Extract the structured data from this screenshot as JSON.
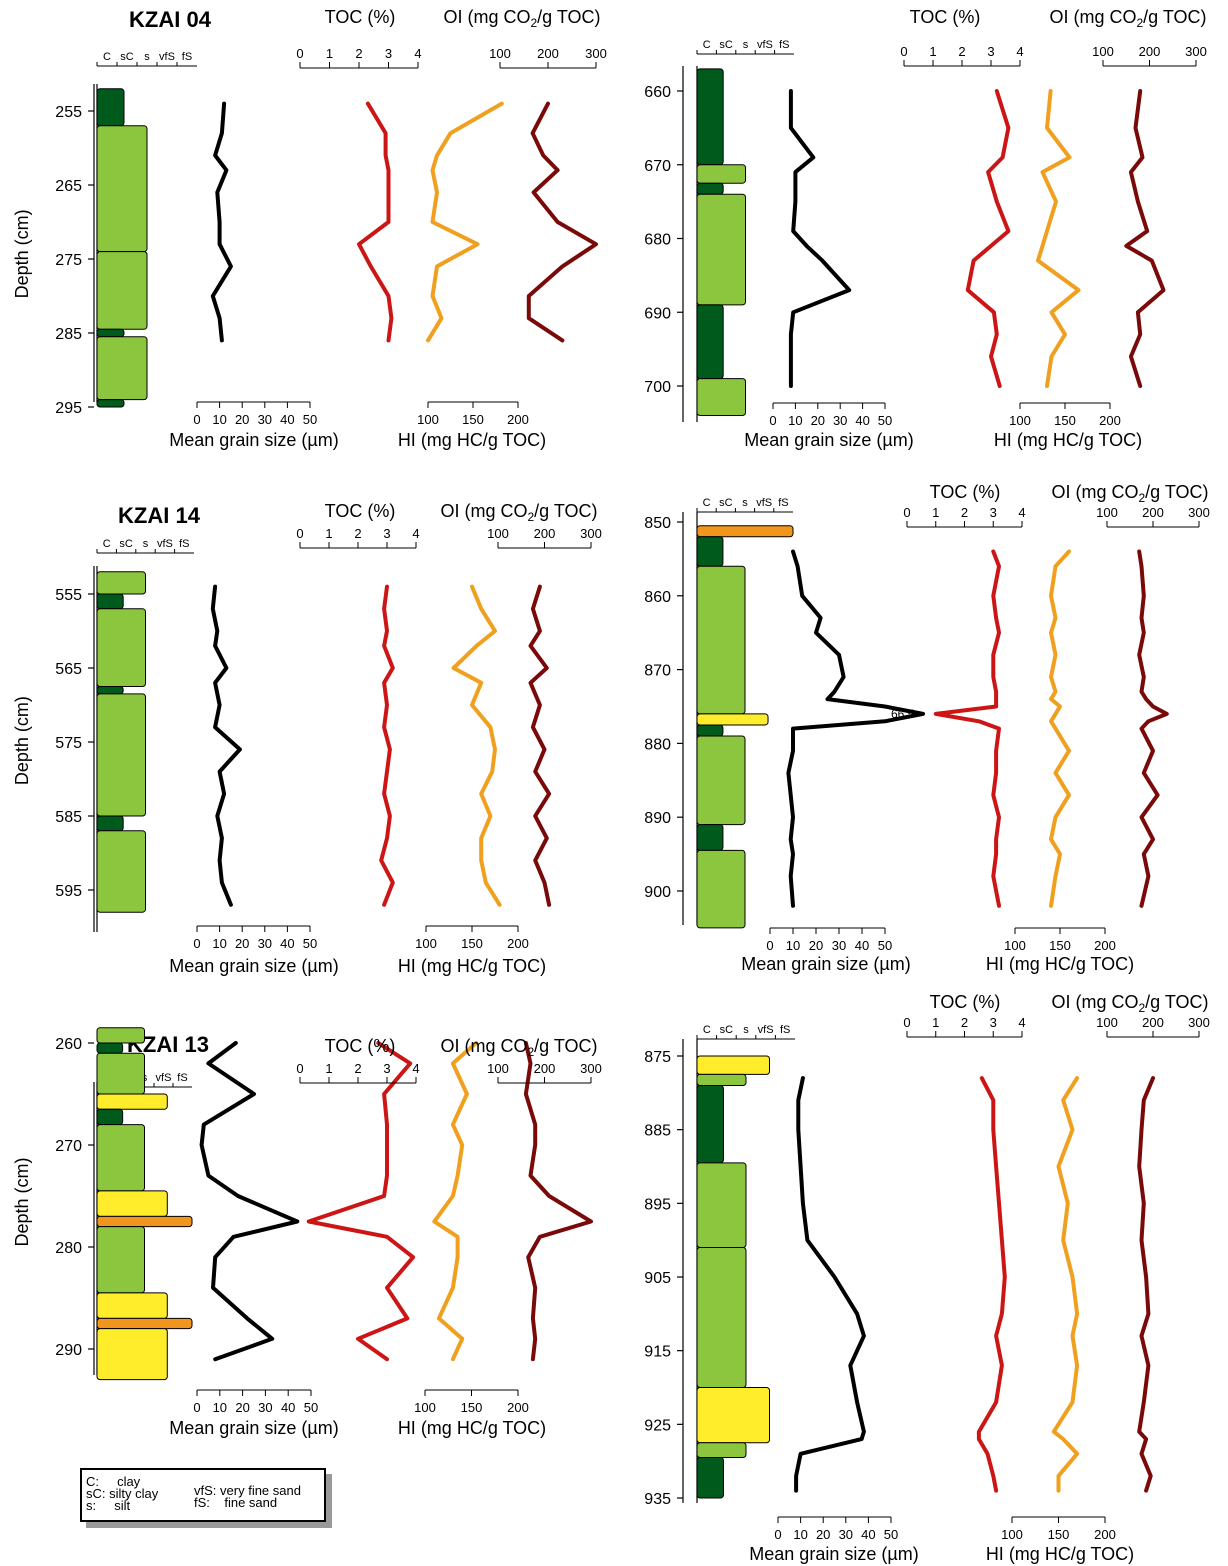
{
  "colors": {
    "clay": "#005a1c",
    "silty_clay": "#8cc63f",
    "silt": "#ffec2a",
    "very_fine_sand": "#f0961e",
    "grain": "#000000",
    "toc": "#cc1616",
    "hi": "#f0a01e",
    "oi": "#7a0a0a"
  },
  "labels": {
    "toc": "TOC (%)",
    "oi_prefix": "OI (mg CO",
    "oi_suffix": "/g TOC)",
    "oi_sub": "2",
    "mgs": "Mean grain size (µm)",
    "hi": "HI (mg HC/g TOC)",
    "depth": "Depth (cm)"
  },
  "lith_ticks": [
    "C",
    "sC",
    "s",
    "vfS",
    "fS"
  ],
  "scales": {
    "toc": [
      "0",
      "1",
      "2",
      "3",
      "4"
    ],
    "oi": [
      "100",
      "200",
      "300"
    ],
    "mgs": [
      "0",
      "10",
      "20",
      "30",
      "40",
      "50"
    ],
    "hi": [
      "100",
      "150",
      "200"
    ]
  },
  "legend": [
    {
      "abbr": "C:",
      "text": "clay"
    },
    {
      "abbr": "sC:",
      "text": "silty clay"
    },
    {
      "abbr": "s:",
      "text": "silt"
    },
    {
      "abbr": "vfS:",
      "text": "very fine sand"
    },
    {
      "abbr": "fS:",
      "text": "fine sand"
    }
  ],
  "chart_data": [
    {
      "type": "line",
      "core": "KZAI 04",
      "depth_ticks": [
        255,
        265,
        275,
        285,
        295
      ],
      "depth_range": [
        251,
        296
      ],
      "lithology": [
        {
          "top": 252,
          "bottom": 257,
          "class": "clay"
        },
        {
          "top": 257,
          "bottom": 274,
          "class": "silty_clay"
        },
        {
          "top": 274,
          "bottom": 284.5,
          "class": "silty_clay"
        },
        {
          "top": 284.5,
          "bottom": 285.5,
          "class": "clay"
        },
        {
          "top": 285.5,
          "bottom": 294,
          "class": "silty_clay"
        },
        {
          "top": 294,
          "bottom": 295,
          "class": "clay"
        }
      ],
      "depths": [
        254,
        258,
        261,
        263,
        266,
        270,
        273,
        276,
        280,
        283,
        286
      ],
      "mean_grain_size": [
        12,
        11,
        8,
        13,
        9,
        10,
        10,
        15,
        7,
        10,
        11
      ],
      "toc": [
        2.3,
        2.9,
        2.9,
        3.0,
        3.0,
        3.0,
        2.0,
        2.4,
        3.0,
        3.1,
        3.0
      ],
      "hi": [
        182,
        125,
        110,
        105,
        110,
        105,
        155,
        110,
        105,
        115,
        100
      ],
      "oi": [
        200,
        168,
        190,
        220,
        170,
        220,
        300,
        230,
        160,
        160,
        230
      ]
    },
    {
      "type": "line",
      "core": "",
      "depth_ticks": [
        660,
        670,
        680,
        690,
        700
      ],
      "depth_range": [
        656,
        705
      ],
      "lithology": [
        {
          "top": 657,
          "bottom": 670,
          "class": "clay"
        },
        {
          "top": 670,
          "bottom": 672.5,
          "class": "silty_clay"
        },
        {
          "top": 672.5,
          "bottom": 674,
          "class": "clay"
        },
        {
          "top": 674,
          "bottom": 689,
          "class": "silty_clay"
        },
        {
          "top": 689,
          "bottom": 699,
          "class": "clay"
        },
        {
          "top": 699,
          "bottom": 704,
          "class": "silty_clay"
        }
      ],
      "depths": [
        660,
        665,
        669,
        671,
        675,
        679,
        681,
        683,
        687,
        690,
        693,
        696,
        700
      ],
      "mean_grain_size": [
        8,
        8,
        18,
        10,
        10,
        9,
        15,
        22,
        34,
        9,
        8,
        8,
        8
      ],
      "toc": [
        3.2,
        3.6,
        3.4,
        2.9,
        3.2,
        3.6,
        3.0,
        2.4,
        2.2,
        3.1,
        3.2,
        3.0,
        3.3
      ],
      "hi": [
        134,
        130,
        155,
        125,
        140,
        130,
        125,
        120,
        165,
        135,
        150,
        135,
        130
      ],
      "oi": [
        180,
        170,
        185,
        160,
        175,
        195,
        150,
        205,
        230,
        175,
        180,
        160,
        180
      ]
    },
    {
      "type": "line",
      "core": "KZAI 14",
      "depth_ticks": [
        555,
        565,
        575,
        585,
        595
      ],
      "depth_range": [
        551,
        597
      ],
      "lithology": [
        {
          "top": 552,
          "bottom": 555,
          "class": "silty_clay"
        },
        {
          "top": 555,
          "bottom": 557,
          "class": "clay"
        },
        {
          "top": 557,
          "bottom": 567.5,
          "class": "silty_clay"
        },
        {
          "top": 567.5,
          "bottom": 568.5,
          "class": "clay"
        },
        {
          "top": 568.5,
          "bottom": 585,
          "class": "silty_clay"
        },
        {
          "top": 585,
          "bottom": 587,
          "class": "clay"
        },
        {
          "top": 587,
          "bottom": 598,
          "class": "silty_clay"
        }
      ],
      "depths": [
        554,
        557,
        560,
        562,
        565,
        567,
        570,
        573,
        576,
        579,
        582,
        585,
        588,
        591,
        594,
        597
      ],
      "mean_grain_size": [
        8,
        7,
        9,
        8,
        13,
        8,
        10,
        8,
        19,
        10,
        12,
        9,
        11,
        10,
        11,
        15
      ],
      "toc": [
        3.0,
        2.9,
        3.0,
        2.9,
        3.2,
        2.9,
        3.0,
        2.9,
        3.1,
        3.0,
        2.9,
        3.1,
        3.0,
        2.8,
        3.2,
        2.9
      ],
      "hi": [
        150,
        160,
        175,
        155,
        130,
        160,
        150,
        170,
        175,
        172,
        160,
        170,
        160,
        160,
        165,
        180
      ],
      "oi": [
        190,
        175,
        190,
        170,
        205,
        170,
        190,
        175,
        200,
        180,
        210,
        180,
        205,
        180,
        200,
        210
      ]
    },
    {
      "type": "line",
      "core": "",
      "depth_ticks": [
        850,
        860,
        870,
        880,
        890,
        900
      ],
      "depth_range": [
        849,
        905
      ],
      "lithology": [
        {
          "top": 850.5,
          "bottom": 852,
          "class": "very_fine_sand"
        },
        {
          "top": 852,
          "bottom": 856,
          "class": "clay"
        },
        {
          "top": 856,
          "bottom": 876,
          "class": "silty_clay"
        },
        {
          "top": 876,
          "bottom": 877.5,
          "class": "silt"
        },
        {
          "top": 877.5,
          "bottom": 879,
          "class": "clay"
        },
        {
          "top": 879,
          "bottom": 891,
          "class": "silty_clay"
        },
        {
          "top": 891,
          "bottom": 894.5,
          "class": "clay"
        },
        {
          "top": 894.5,
          "bottom": 905,
          "class": "silty_clay"
        }
      ],
      "depths": [
        854,
        856,
        860,
        863,
        865,
        868,
        871,
        873,
        874,
        875,
        876,
        877,
        878,
        881,
        884,
        887,
        890,
        893,
        895,
        898,
        902
      ],
      "mean_grain_size": [
        10,
        12,
        14,
        22,
        20,
        30,
        32,
        28,
        25,
        50,
        66.5,
        50,
        10,
        10,
        8,
        9,
        10,
        9,
        10,
        9,
        10
      ],
      "annotation": {
        "depth": 876,
        "text": "66.5"
      },
      "toc": [
        3.0,
        3.2,
        3.0,
        3.1,
        3.2,
        3.0,
        3.0,
        3.1,
        3.1,
        3.1,
        1.0,
        2.5,
        3.2,
        3.1,
        3.1,
        3.0,
        3.2,
        3.1,
        3.1,
        3.0,
        3.2
      ],
      "hi": [
        160,
        145,
        140,
        145,
        140,
        145,
        140,
        145,
        140,
        150,
        145,
        140,
        145,
        160,
        145,
        160,
        145,
        140,
        150,
        145,
        140
      ],
      "oi": [
        170,
        175,
        180,
        175,
        180,
        170,
        180,
        175,
        185,
        200,
        230,
        190,
        175,
        200,
        180,
        210,
        175,
        200,
        180,
        190,
        175
      ]
    },
    {
      "type": "line",
      "core": "KZAI 13",
      "depth_ticks": [
        260,
        270,
        280,
        290
      ],
      "depth_range": [
        257,
        293
      ],
      "lithology": [
        {
          "top": 258.5,
          "bottom": 260,
          "class": "silty_clay"
        },
        {
          "top": 260,
          "bottom": 261,
          "class": "clay"
        },
        {
          "top": 261,
          "bottom": 265,
          "class": "silty_clay"
        },
        {
          "top": 265,
          "bottom": 266.5,
          "class": "silt"
        },
        {
          "top": 266.5,
          "bottom": 268,
          "class": "clay"
        },
        {
          "top": 268,
          "bottom": 274.5,
          "class": "silty_clay"
        },
        {
          "top": 274.5,
          "bottom": 277,
          "class": "silt"
        },
        {
          "top": 277,
          "bottom": 278,
          "class": "very_fine_sand"
        },
        {
          "top": 278,
          "bottom": 284.5,
          "class": "silty_clay"
        },
        {
          "top": 284.5,
          "bottom": 287,
          "class": "silt"
        },
        {
          "top": 287,
          "bottom": 288,
          "class": "very_fine_sand"
        },
        {
          "top": 288,
          "bottom": 293,
          "class": "silt"
        }
      ],
      "depths": [
        260,
        262,
        265,
        268,
        270,
        273,
        275,
        277.5,
        279,
        281,
        284,
        287,
        289,
        291
      ],
      "mean_grain_size": [
        17,
        5,
        25,
        3,
        2,
        5,
        18,
        44,
        16,
        8,
        7,
        22,
        33,
        8
      ],
      "toc": [
        2.7,
        3.8,
        2.9,
        3.0,
        3.0,
        3.0,
        2.9,
        0.3,
        3.0,
        3.9,
        3.0,
        3.7,
        2.0,
        3.0
      ],
      "hi": [
        155,
        130,
        145,
        130,
        140,
        135,
        130,
        110,
        135,
        135,
        130,
        115,
        140,
        130
      ],
      "oi": [
        160,
        170,
        160,
        180,
        180,
        170,
        210,
        300,
        190,
        165,
        180,
        175,
        180,
        175
      ]
    },
    {
      "type": "line",
      "core": "",
      "depth_ticks": [
        875,
        885,
        895,
        905,
        915,
        925,
        935
      ],
      "depth_range": [
        874,
        935
      ],
      "lithology": [
        {
          "top": 875,
          "bottom": 877.5,
          "class": "silt"
        },
        {
          "top": 877.5,
          "bottom": 879,
          "class": "silty_clay"
        },
        {
          "top": 879,
          "bottom": 889.5,
          "class": "clay"
        },
        {
          "top": 889.5,
          "bottom": 901,
          "class": "silty_clay"
        },
        {
          "top": 901,
          "bottom": 920,
          "class": "silty_clay"
        },
        {
          "top": 920,
          "bottom": 927.5,
          "class": "silt"
        },
        {
          "top": 927.5,
          "bottom": 929.5,
          "class": "silty_clay"
        },
        {
          "top": 929.5,
          "bottom": 935,
          "class": "clay"
        }
      ],
      "depths": [
        878,
        881,
        885,
        890,
        895,
        900,
        905,
        910,
        913,
        917,
        922,
        926,
        927,
        929,
        932,
        934
      ],
      "mean_grain_size": [
        11,
        9,
        9,
        10,
        11,
        13,
        25,
        35,
        38,
        32,
        35,
        38,
        37,
        10,
        8,
        8
      ],
      "toc": [
        2.6,
        3.0,
        3.0,
        3.1,
        3.2,
        3.3,
        3.4,
        3.3,
        3.1,
        3.3,
        3.1,
        2.5,
        2.5,
        2.8,
        3.0,
        3.1
      ],
      "hi": [
        170,
        155,
        165,
        150,
        160,
        155,
        165,
        170,
        165,
        170,
        165,
        145,
        155,
        170,
        150,
        150
      ],
      "oi": [
        200,
        180,
        175,
        170,
        180,
        175,
        185,
        190,
        175,
        190,
        180,
        170,
        185,
        175,
        195,
        185
      ]
    }
  ]
}
